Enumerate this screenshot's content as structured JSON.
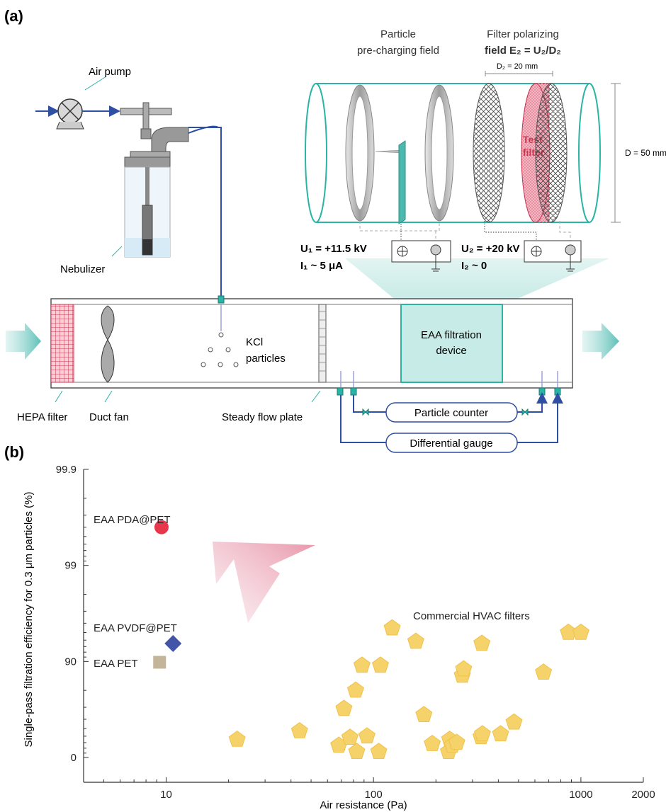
{
  "panel_a": {
    "label": "(a)",
    "air_pump": "Air pump",
    "nebulizer": "Nebulizer",
    "hepa": "HEPA filter",
    "duct_fan": "Duct fan",
    "steady_plate": "Steady flow plate",
    "kcl_1": "KCl",
    "kcl_2": "particles",
    "eaa_1": "EAA filtration",
    "eaa_2": "device",
    "particle_counter": "Particle counter",
    "diff_gauge": "Differential gauge",
    "precharge_1": "Particle",
    "precharge_2": "pre-charging field",
    "polar_1": "Filter polarizing",
    "polar_2": "field E₂ = U₂/D₂",
    "d2": "D₂ = 20 mm",
    "d": "D = 50 mm",
    "test_1": "Test",
    "test_2": "filter",
    "u1": "U₁ = +11.5 kV",
    "i1": "I₁ ~ 5 μA",
    "u2": "U₂ = +20 kV",
    "i2": "I₂ ~ 0",
    "colors": {
      "teal": "#2bb3a6",
      "blue": "#2f4fa3",
      "hepa": "#c8364f",
      "test": "#c8364f"
    }
  },
  "panel_b": {
    "label": "(b)"
  },
  "chart_data": {
    "type": "scatter",
    "xlabel": "Air resistance (Pa)",
    "ylabel": "Single-pass filtration efficiency for 0.3 μm particles (%)",
    "x_scale": "log",
    "xlim": [
      4,
      2000
    ],
    "x_ticks": [
      10,
      100,
      1000,
      2000
    ],
    "y_scale": "log-penetration",
    "y_ticks": [
      "0",
      "90",
      "99",
      "99.9"
    ],
    "annotation": "Commercial HVAC filters",
    "series": [
      {
        "name": "EAA PDA@PET",
        "marker": "circle",
        "color": "#e8364a",
        "points": [
          [
            9.5,
            99.6
          ]
        ]
      },
      {
        "name": "EAA PVDF@PET",
        "marker": "diamond",
        "color": "#4355a8",
        "points": [
          [
            10.8,
            93.5
          ]
        ]
      },
      {
        "name": "EAA PET",
        "marker": "square",
        "color": "#c4b49a",
        "points": [
          [
            9.3,
            89.8
          ]
        ]
      },
      {
        "name": "Commercial HVAC filters",
        "marker": "pentagon",
        "color": "#f6d26a",
        "points": [
          [
            22,
            35
          ],
          [
            44,
            47
          ],
          [
            68,
            25
          ],
          [
            72,
            69
          ],
          [
            77,
            38
          ],
          [
            82,
            80
          ],
          [
            83,
            13
          ],
          [
            88,
            89
          ],
          [
            93,
            40
          ],
          [
            106,
            13
          ],
          [
            108,
            89
          ],
          [
            123,
            95.5
          ],
          [
            160,
            93.8
          ],
          [
            175,
            64
          ],
          [
            192,
            28
          ],
          [
            230,
            13
          ],
          [
            233,
            35
          ],
          [
            240,
            25
          ],
          [
            252,
            30
          ],
          [
            268,
            86
          ],
          [
            272,
            88
          ],
          [
            330,
            39
          ],
          [
            335,
            43
          ],
          [
            333,
            93.5
          ],
          [
            410,
            43
          ],
          [
            476,
            57
          ],
          [
            660,
            87
          ],
          [
            870,
            95
          ],
          [
            1000,
            95
          ]
        ]
      }
    ]
  }
}
